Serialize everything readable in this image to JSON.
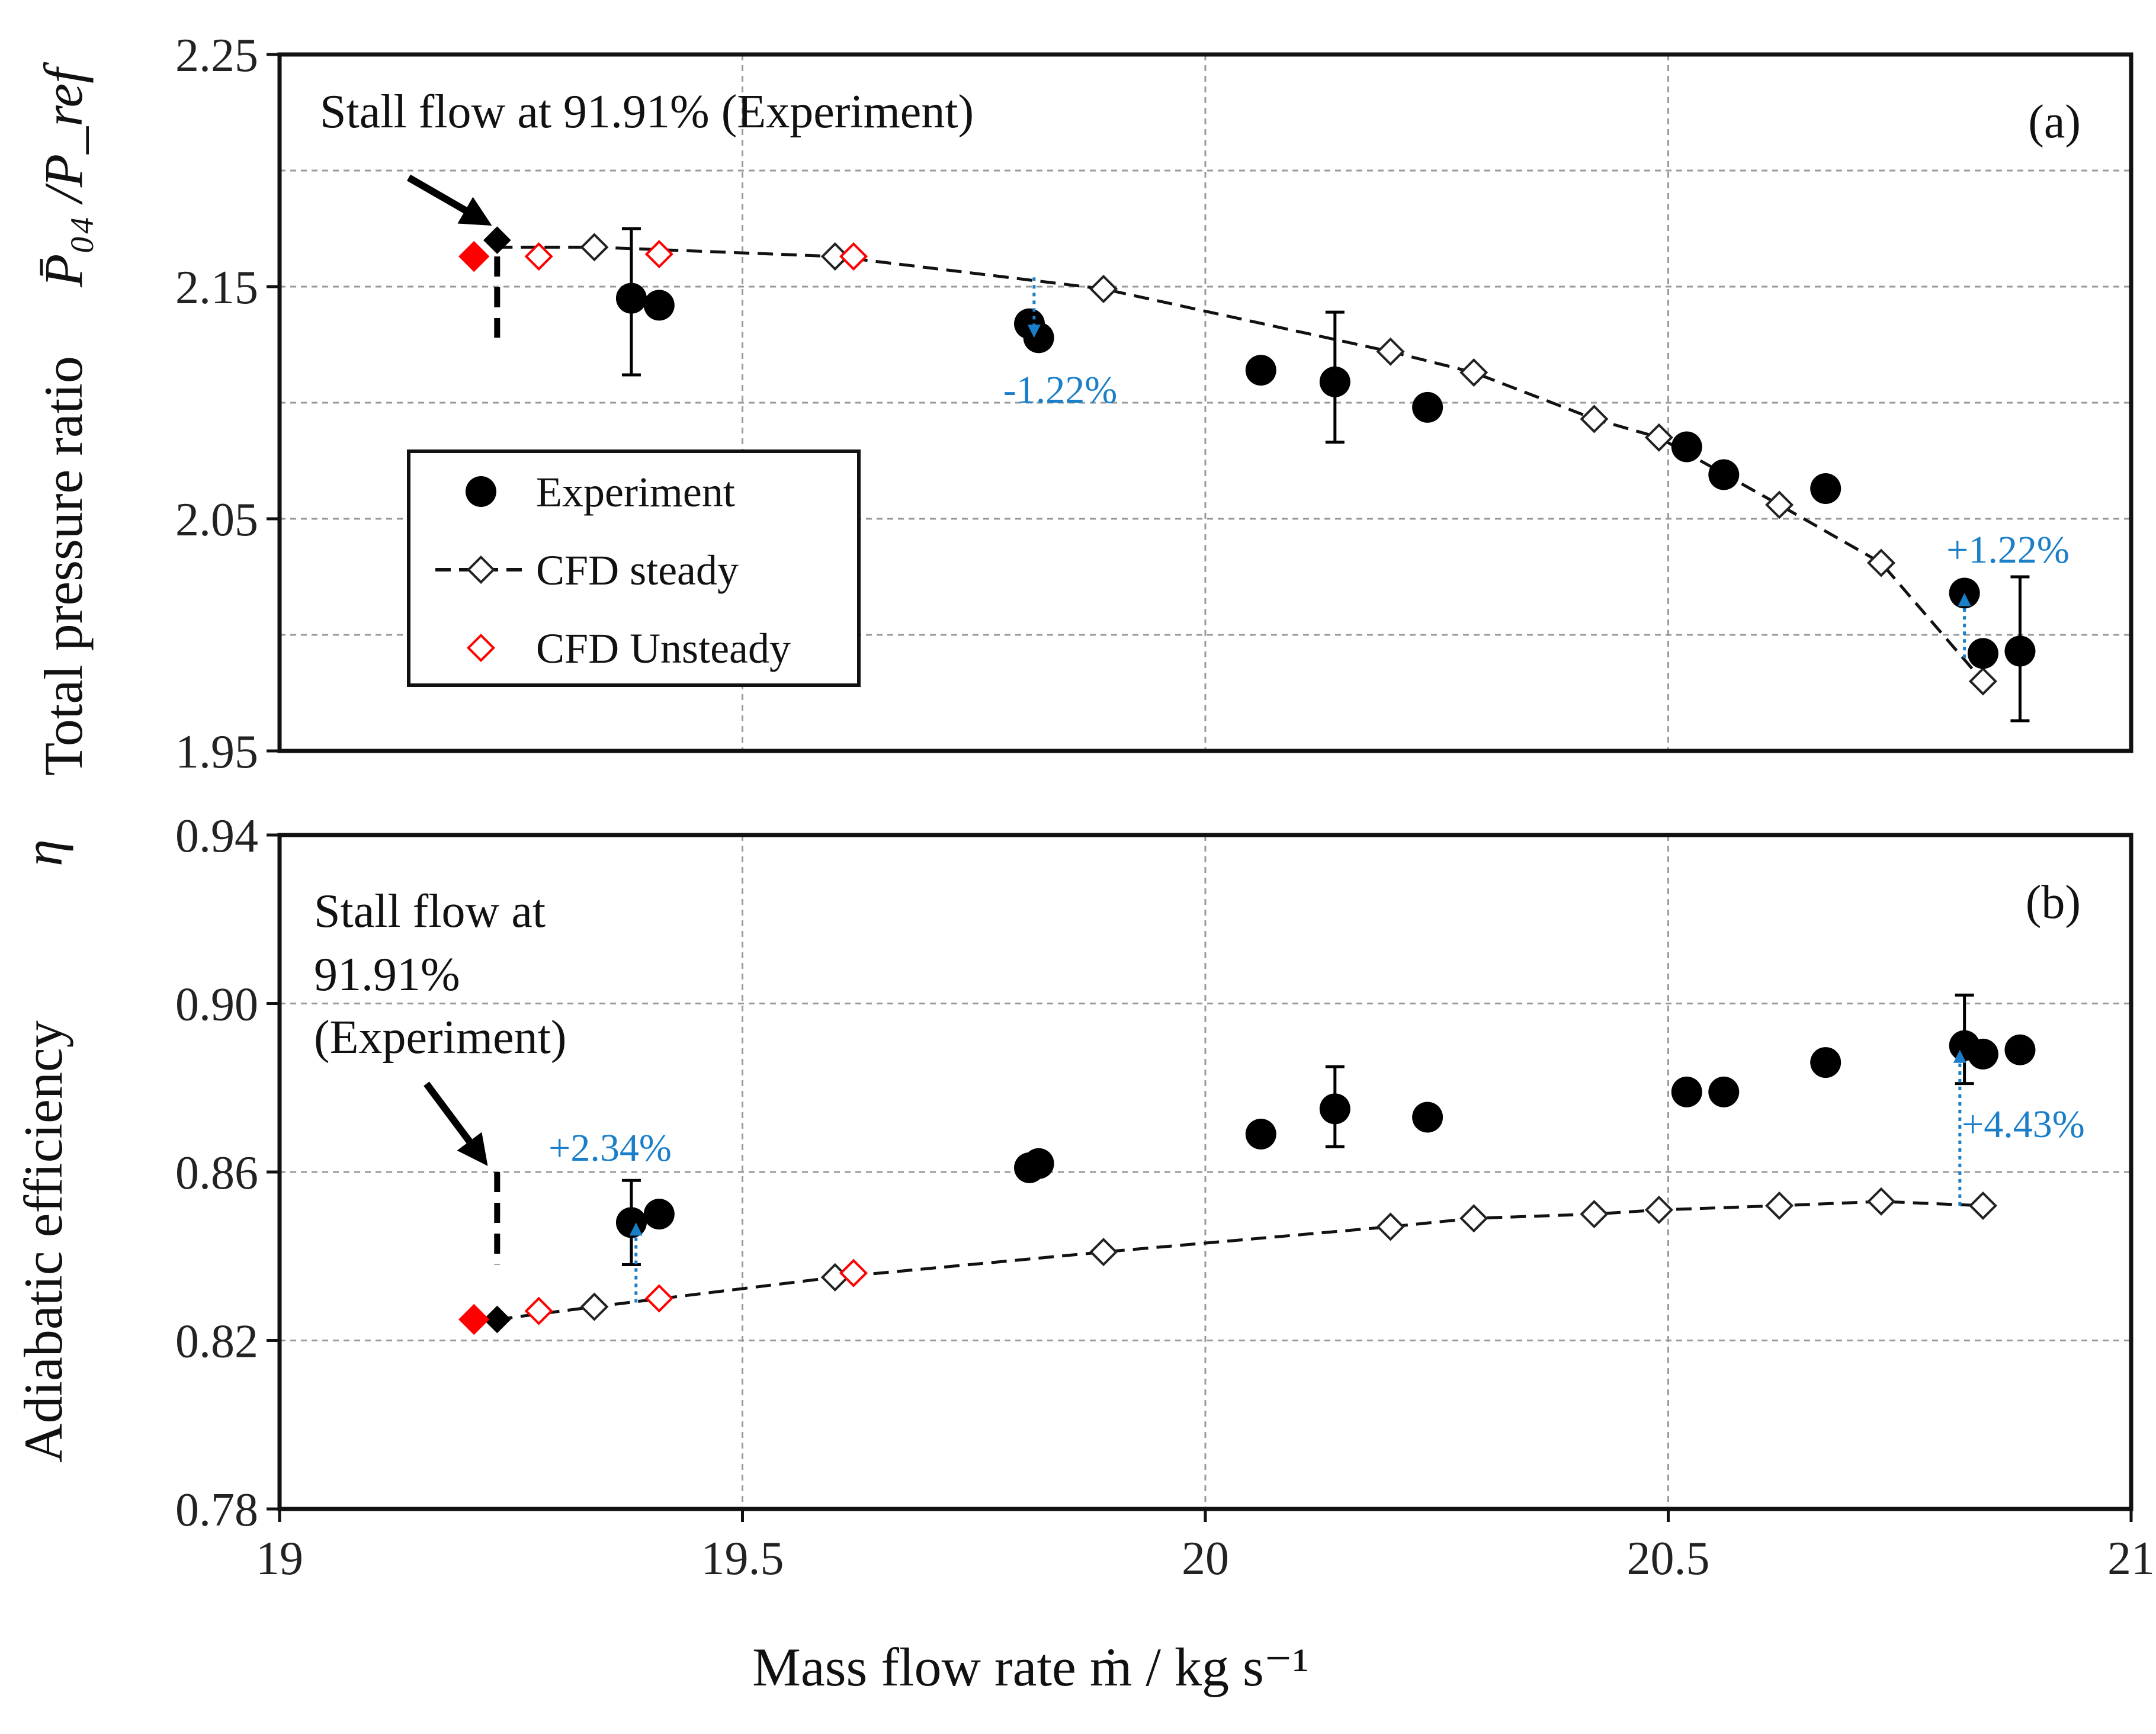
{
  "chart_data": [
    {
      "id": "a",
      "type": "scatter",
      "panel_label": "(a)",
      "ylabel": "Total pressure ratio",
      "ylabel_symbol": "P̄₀₄ /P_ref",
      "ylim": [
        1.95,
        2.25
      ],
      "yticks": [
        "1.95",
        "2.05",
        "2.15",
        "2.25"
      ],
      "xlim": [
        19,
        21
      ],
      "stall_annotation": [
        "Stall flow at 91.91% (Experiment)"
      ],
      "stall_x": 19.235,
      "stall_marker": {
        "x": 19.235,
        "y": 2.17
      },
      "stall_line": [
        2.163,
        2.128
      ],
      "series": [
        {
          "name": "Experiment",
          "marker": "filled-circle",
          "points": [
            [
              19.38,
              2.145
            ],
            [
              19.41,
              2.142
            ],
            [
              19.81,
              2.134
            ],
            [
              19.82,
              2.128
            ],
            [
              20.06,
              2.114
            ],
            [
              20.14,
              2.109
            ],
            [
              20.24,
              2.098
            ],
            [
              20.52,
              2.081
            ],
            [
              20.56,
              2.069
            ],
            [
              20.67,
              2.063
            ],
            [
              20.82,
              2.018
            ],
            [
              20.84,
              1.992
            ],
            [
              20.88,
              1.993
            ]
          ],
          "error_bars": [
            {
              "x": 19.38,
              "low": 2.112,
              "high": 2.175
            },
            {
              "x": 20.14,
              "low": 2.083,
              "high": 2.139
            },
            {
              "x": 20.88,
              "low": 1.963,
              "high": 2.025
            }
          ]
        },
        {
          "name": "CFD steady",
          "marker": "open-diamond",
          "line": "dashed",
          "points": [
            [
              19.34,
              2.167
            ],
            [
              19.6,
              2.163
            ],
            [
              19.89,
              2.149
            ],
            [
              20.2,
              2.122
            ],
            [
              20.29,
              2.113
            ],
            [
              20.42,
              2.093
            ],
            [
              20.49,
              2.085
            ],
            [
              20.62,
              2.056
            ],
            [
              20.73,
              2.031
            ],
            [
              20.84,
              1.98
            ]
          ],
          "line_points": [
            [
              19.235,
              2.167
            ],
            [
              19.34,
              2.167
            ],
            [
              19.6,
              2.163
            ],
            [
              19.89,
              2.149
            ],
            [
              20.2,
              2.122
            ],
            [
              20.29,
              2.113
            ],
            [
              20.42,
              2.093
            ],
            [
              20.49,
              2.085
            ],
            [
              20.62,
              2.056
            ],
            [
              20.73,
              2.031
            ],
            [
              20.84,
              1.98
            ]
          ]
        },
        {
          "name": "CFD Unsteady",
          "marker": "open-diamond-red",
          "points": [
            [
              19.28,
              2.163
            ],
            [
              19.41,
              2.164
            ],
            [
              19.62,
              2.163
            ]
          ],
          "filled_point": [
            19.21,
            2.163
          ]
        }
      ],
      "differences": [
        {
          "label": "-1.22%",
          "x": 19.815,
          "y_from": 2.154,
          "y_to": 2.128
        },
        {
          "label": "+1.22%",
          "x": 20.82,
          "y_from": 1.99,
          "y_to": 2.018
        }
      ]
    },
    {
      "id": "b",
      "type": "scatter",
      "panel_label": "(b)",
      "ylabel": "Adiabatic efficiency",
      "ylabel_symbol": "η",
      "ylim": [
        0.78,
        0.94
      ],
      "yticks": [
        "0.78",
        "0.82",
        "0.86",
        "0.90",
        "0.94"
      ],
      "xlim": [
        19,
        21
      ],
      "stall_annotation": [
        "Stall flow at",
        "91.91%",
        "(Experiment)"
      ],
      "stall_x": 19.235,
      "stall_marker": {
        "x": 19.235,
        "y": 0.825
      },
      "stall_line": [
        0.86,
        0.838
      ],
      "series": [
        {
          "name": "Experiment",
          "marker": "filled-circle",
          "points": [
            [
              19.38,
              0.848
            ],
            [
              19.41,
              0.85
            ],
            [
              19.81,
              0.861
            ],
            [
              19.82,
              0.862
            ],
            [
              20.06,
              0.869
            ],
            [
              20.14,
              0.875
            ],
            [
              20.24,
              0.873
            ],
            [
              20.52,
              0.879
            ],
            [
              20.56,
              0.879
            ],
            [
              20.67,
              0.886
            ],
            [
              20.82,
              0.89
            ],
            [
              20.84,
              0.888
            ],
            [
              20.88,
              0.889
            ]
          ],
          "error_bars": [
            {
              "x": 19.38,
              "low": 0.838,
              "high": 0.858
            },
            {
              "x": 20.14,
              "low": 0.866,
              "high": 0.885
            },
            {
              "x": 20.82,
              "low": 0.881,
              "high": 0.902
            }
          ]
        },
        {
          "name": "CFD steady",
          "marker": "open-diamond",
          "line": "dashed",
          "points": [
            [
              19.34,
              0.828
            ],
            [
              19.6,
              0.835
            ],
            [
              19.89,
              0.841
            ],
            [
              20.2,
              0.847
            ],
            [
              20.29,
              0.849
            ],
            [
              20.42,
              0.85
            ],
            [
              20.49,
              0.851
            ],
            [
              20.62,
              0.852
            ],
            [
              20.73,
              0.853
            ],
            [
              20.84,
              0.852
            ]
          ],
          "line_points": [
            [
              19.235,
              0.825
            ],
            [
              19.34,
              0.828
            ],
            [
              19.6,
              0.835
            ],
            [
              19.89,
              0.841
            ],
            [
              20.2,
              0.847
            ],
            [
              20.29,
              0.849
            ],
            [
              20.42,
              0.85
            ],
            [
              20.49,
              0.851
            ],
            [
              20.62,
              0.852
            ],
            [
              20.73,
              0.853
            ],
            [
              20.84,
              0.852
            ]
          ]
        },
        {
          "name": "CFD Unsteady",
          "marker": "open-diamond-red",
          "points": [
            [
              19.28,
              0.827
            ],
            [
              19.41,
              0.83
            ],
            [
              19.62,
              0.836
            ]
          ],
          "filled_point": [
            19.21,
            0.825
          ]
        }
      ],
      "differences": [
        {
          "label": "+2.34%",
          "x": 19.385,
          "y_from": 0.829,
          "y_to": 0.848
        },
        {
          "label": "+4.43%",
          "x": 20.815,
          "y_from": 0.852,
          "y_to": 0.889
        }
      ]
    }
  ],
  "x_axis": {
    "label": "Mass flow rate  ṁ  /  kg s⁻¹",
    "ticks": [
      "19",
      "19.5",
      "20",
      "20.5",
      "21"
    ]
  },
  "legend": {
    "items": [
      "Experiment",
      "CFD steady",
      "CFD Unsteady"
    ]
  },
  "colors": {
    "experiment": "#000000",
    "cfd_steady": "#000000",
    "cfd_unsteady": "#ff0000",
    "difference": "#1a7fc8",
    "grid": "#9a9a9a"
  }
}
